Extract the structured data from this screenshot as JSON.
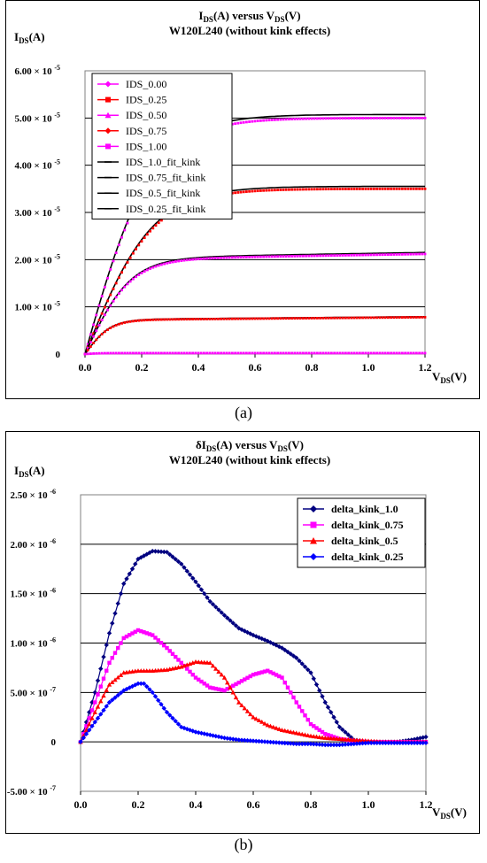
{
  "chart_data": [
    {
      "type": "scatter",
      "title_line1": "IDS(A) versus VDS(V)",
      "title_line2": "W120L240 (without kink effects)",
      "ylabel": "IDS(A)",
      "xlabel": "VDS(V)",
      "xlim": [
        0,
        1.2
      ],
      "ylim": [
        0,
        6e-05
      ],
      "xticks": [
        "0.0",
        "0.2",
        "0.4",
        "0.6",
        "0.8",
        "1.0",
        "1.2"
      ],
      "yticks": [
        "0",
        "1.00 × 10⁻⁵",
        "2.00 × 10⁻⁵",
        "3.00 × 10⁻⁵",
        "4.00 × 10⁻⁵",
        "5.00 × 10⁻⁵",
        "6.00 × 10⁻⁵"
      ],
      "legend_position": "top-left",
      "legend": [
        {
          "name": "IDS_0.00",
          "color": "#ff00ff",
          "marker": "diamond"
        },
        {
          "name": "IDS_0.25",
          "color": "#ff0000",
          "marker": "square"
        },
        {
          "name": "IDS_0.50",
          "color": "#ff00ff",
          "marker": "triangle"
        },
        {
          "name": "IDS_0.75",
          "color": "#ff0000",
          "marker": "diamond"
        },
        {
          "name": "IDS_1.00",
          "color": "#ff00ff",
          "marker": "square"
        },
        {
          "name": "IDS_1.0_fit_kink",
          "color": "#000000",
          "marker": "dash"
        },
        {
          "name": "IDS_0.75_fit_kink",
          "color": "#000000",
          "marker": "dash"
        },
        {
          "name": "IDS_0.5_fit_kink",
          "color": "#000000",
          "marker": "dash"
        },
        {
          "name": "IDS_0.25_fit_kink",
          "color": "#000000",
          "marker": "dash"
        }
      ],
      "curves": [
        {
          "series": "IDS_1.00",
          "color": "#ff00ff",
          "isat": 5e-05,
          "vk": 0.24,
          "slope": 0.0
        },
        {
          "series": "IDS_0.75",
          "color": "#ff0000",
          "isat": 3.5e-05,
          "vk": 0.24,
          "slope": 0.0
        },
        {
          "series": "IDS_0.50",
          "color": "#ff00ff",
          "isat": 2e-05,
          "vk": 0.16,
          "slope": 1e-06
        },
        {
          "series": "IDS_0.25",
          "color": "#ff0000",
          "isat": 7.2e-06,
          "vk": 0.09,
          "slope": 5e-07
        },
        {
          "series": "IDS_0.00",
          "color": "#ff00ff",
          "isat": 2e-07,
          "vk": 0.05,
          "slope": 0.0
        }
      ]
    },
    {
      "type": "scatter",
      "title_line1": "δIDS(A) versus VDS(V)",
      "title_line2": "W120L240 (without kink effects)",
      "ylabel": "IDS(A)",
      "xlabel": "VDS(V)",
      "xlim": [
        0,
        1.2
      ],
      "ylim": [
        -5e-07,
        2.5e-06
      ],
      "xticks": [
        "0.0",
        "0.2",
        "0.4",
        "0.6",
        "0.8",
        "1.0",
        "1.2"
      ],
      "yticks": [
        "-5.00 × 10⁻⁷",
        "0",
        "5.00 × 10⁻⁷",
        "1.00 × 10⁻⁶",
        "1.50 × 10⁻⁶",
        "2.00 × 10⁻⁶",
        "2.50 × 10⁻⁶"
      ],
      "legend_position": "top-right",
      "series": [
        {
          "name": "delta_kink_1.0",
          "color": "#000080",
          "marker": "diamond",
          "x": [
            0.0,
            0.05,
            0.1,
            0.15,
            0.2,
            0.25,
            0.3,
            0.35,
            0.4,
            0.45,
            0.5,
            0.55,
            0.6,
            0.65,
            0.7,
            0.75,
            0.8,
            0.85,
            0.9,
            0.95,
            1.0,
            1.05,
            1.1,
            1.15,
            1.2
          ],
          "y": [
            0.0,
            5e-07,
            1.1e-06,
            1.6e-06,
            1.85e-06,
            1.93e-06,
            1.92e-06,
            1.8e-06,
            1.62e-06,
            1.42e-06,
            1.28e-06,
            1.15e-06,
            1.08e-06,
            1.02e-06,
            9.5e-07,
            8.5e-07,
            7e-07,
            4e-07,
            1.5e-07,
            2e-08,
            0.0,
            0.0,
            0.0,
            2e-08,
            5e-08
          ]
        },
        {
          "name": "delta_kink_0.75",
          "color": "#ff00ff",
          "marker": "square",
          "x": [
            0.0,
            0.05,
            0.1,
            0.15,
            0.2,
            0.25,
            0.3,
            0.35,
            0.4,
            0.45,
            0.5,
            0.55,
            0.6,
            0.65,
            0.7,
            0.75,
            0.8,
            0.85,
            0.9,
            0.95,
            1.0,
            1.05,
            1.1,
            1.15,
            1.2
          ],
          "y": [
            0.0,
            4e-07,
            8e-07,
            1.05e-06,
            1.13e-06,
            1.08e-06,
            9.5e-07,
            8e-07,
            6.5e-07,
            5.5e-07,
            5.2e-07,
            6e-07,
            6.8e-07,
            7.2e-07,
            6.5e-07,
            4e-07,
            1.8e-07,
            8e-08,
            3e-08,
            1e-08,
            0.0,
            0.0,
            0.0,
            0.0,
            0.0
          ]
        },
        {
          "name": "delta_kink_0.5",
          "color": "#ff0000",
          "marker": "triangle",
          "x": [
            0.0,
            0.05,
            0.1,
            0.15,
            0.2,
            0.25,
            0.3,
            0.35,
            0.4,
            0.45,
            0.5,
            0.55,
            0.6,
            0.65,
            0.7,
            0.75,
            0.8,
            0.85,
            0.9,
            0.95,
            1.0,
            1.05,
            1.1,
            1.15,
            1.2
          ],
          "y": [
            0.0,
            3e-07,
            5.8e-07,
            7e-07,
            7.2e-07,
            7.2e-07,
            7.3e-07,
            7.6e-07,
            8.1e-07,
            8e-07,
            6.5e-07,
            4e-07,
            2.5e-07,
            1.7e-07,
            1.2e-07,
            9e-08,
            6e-08,
            4e-08,
            3e-08,
            2e-08,
            1e-08,
            0.0,
            0.0,
            0.0,
            0.0
          ]
        },
        {
          "name": "delta_kink_0.25",
          "color": "#0000ff",
          "marker": "diamond",
          "x": [
            0.0,
            0.05,
            0.1,
            0.15,
            0.2,
            0.22,
            0.25,
            0.3,
            0.35,
            0.4,
            0.45,
            0.5,
            0.55,
            0.6,
            0.65,
            0.7,
            0.75,
            0.8,
            0.85,
            0.9,
            0.95,
            1.0,
            1.05,
            1.1,
            1.15,
            1.2
          ],
          "y": [
            0.0,
            2e-07,
            4e-07,
            5.2e-07,
            5.9e-07,
            5.9e-07,
            5e-07,
            3e-07,
            1.5e-07,
            1e-07,
            7e-08,
            4e-08,
            2e-08,
            1e-08,
            0.0,
            -1e-08,
            -2e-08,
            -2e-08,
            -3e-08,
            -3e-08,
            -2e-08,
            -1e-08,
            -1e-08,
            -1e-08,
            -1e-08,
            -1e-08
          ]
        }
      ]
    }
  ],
  "captions": {
    "a": "(a)",
    "b": "(b)"
  }
}
